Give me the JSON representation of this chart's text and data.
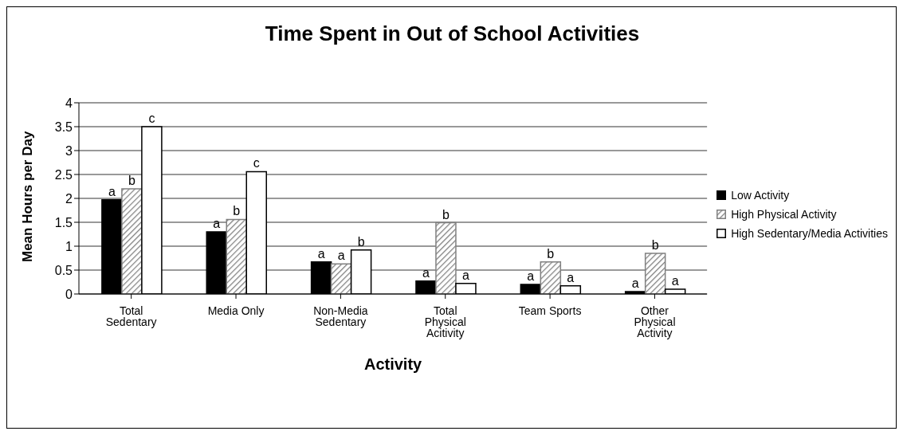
{
  "chart_data": {
    "type": "bar",
    "title": "Time Spent in Out of School Activities",
    "xlabel": "Activity",
    "ylabel": "Mean Hours per Day",
    "categories": [
      "Total Sedentary",
      "Media Only",
      "Non-Media Sedentary",
      "Total Physical Acitivity",
      "Team Sports",
      "Other Physical Activity"
    ],
    "series": [
      {
        "name": "Low Activity",
        "color": "#000000",
        "values": [
          1.97,
          1.3,
          0.67,
          0.27,
          0.2,
          0.05
        ],
        "value_labels": [
          "a",
          "a",
          "a",
          "a",
          "a",
          "a"
        ]
      },
      {
        "name": "High Physical Activity",
        "color": "#808080",
        "values": [
          2.2,
          1.56,
          0.63,
          1.49,
          0.67,
          0.85
        ],
        "value_labels": [
          "b",
          "b",
          "a",
          "b",
          "b",
          "b"
        ]
      },
      {
        "name": "High Sedentary/Media Activities",
        "color": "#ffffff",
        "values": [
          3.5,
          2.56,
          0.92,
          0.22,
          0.17,
          0.1
        ],
        "value_labels": [
          "c",
          "c",
          "b",
          "a",
          "a",
          "a"
        ]
      }
    ],
    "ylim": [
      0,
      4
    ],
    "yticks": [
      0,
      0.5,
      1,
      1.5,
      2,
      2.5,
      3,
      3.5,
      4
    ],
    "grid": "y",
    "legend": "right"
  }
}
